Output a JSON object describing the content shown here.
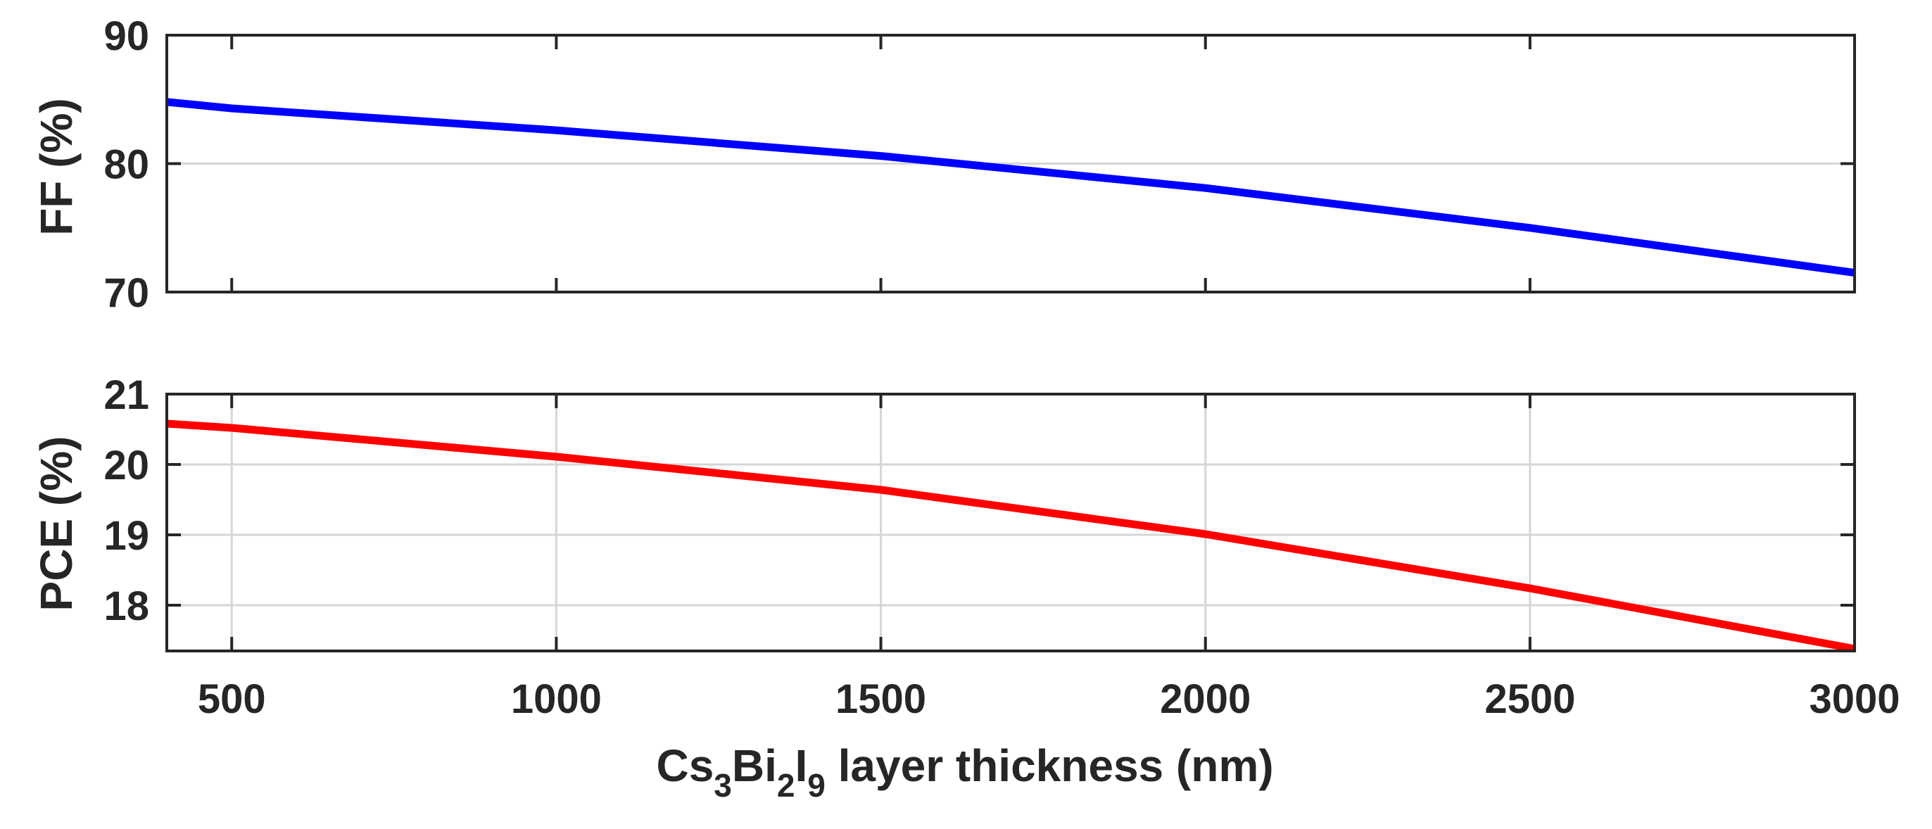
{
  "chart_data": [
    {
      "type": "line",
      "ylabel": "FF (%)",
      "xlim": [
        400,
        3000
      ],
      "ylim": [
        70,
        90
      ],
      "yticks": [
        70,
        80,
        90
      ],
      "ytick_labels": [
        "70",
        "80",
        "90"
      ],
      "grid": "horizontal",
      "series": [
        {
          "name": "FF",
          "color": "#0000ff",
          "x": [
            400,
            500,
            1000,
            1500,
            2000,
            2500,
            3000
          ],
          "y": [
            84.8,
            84.3,
            82.6,
            80.6,
            78.1,
            75.0,
            71.5
          ]
        }
      ]
    },
    {
      "type": "line",
      "ylabel": "PCE (%)",
      "xlim": [
        400,
        3000
      ],
      "ylim": [
        17.35,
        21
      ],
      "yticks": [
        18,
        19,
        20,
        21
      ],
      "ytick_labels": [
        "18",
        "19",
        "20",
        "21"
      ],
      "xticks": [
        500,
        1000,
        1500,
        2000,
        2500,
        3000
      ],
      "xtick_labels": [
        "500",
        "1000",
        "1500",
        "2000",
        "2500",
        "3000"
      ],
      "grid": "both",
      "xlabel": {
        "parts": [
          {
            "text": "Cs",
            "sub": false
          },
          {
            "text": "3",
            "sub": true
          },
          {
            "text": "Bi",
            "sub": false
          },
          {
            "text": "2",
            "sub": true
          },
          {
            "text": "I",
            "sub": false
          },
          {
            "text": "9",
            "sub": true
          },
          {
            "text": " layer thickness (nm)",
            "sub": false
          }
        ]
      },
      "series": [
        {
          "name": "PCE",
          "color": "#ff0000",
          "x": [
            400,
            500,
            1000,
            1500,
            2000,
            2500,
            3000
          ],
          "y": [
            20.58,
            20.52,
            20.11,
            19.64,
            19.01,
            18.24,
            17.38
          ]
        }
      ]
    }
  ]
}
